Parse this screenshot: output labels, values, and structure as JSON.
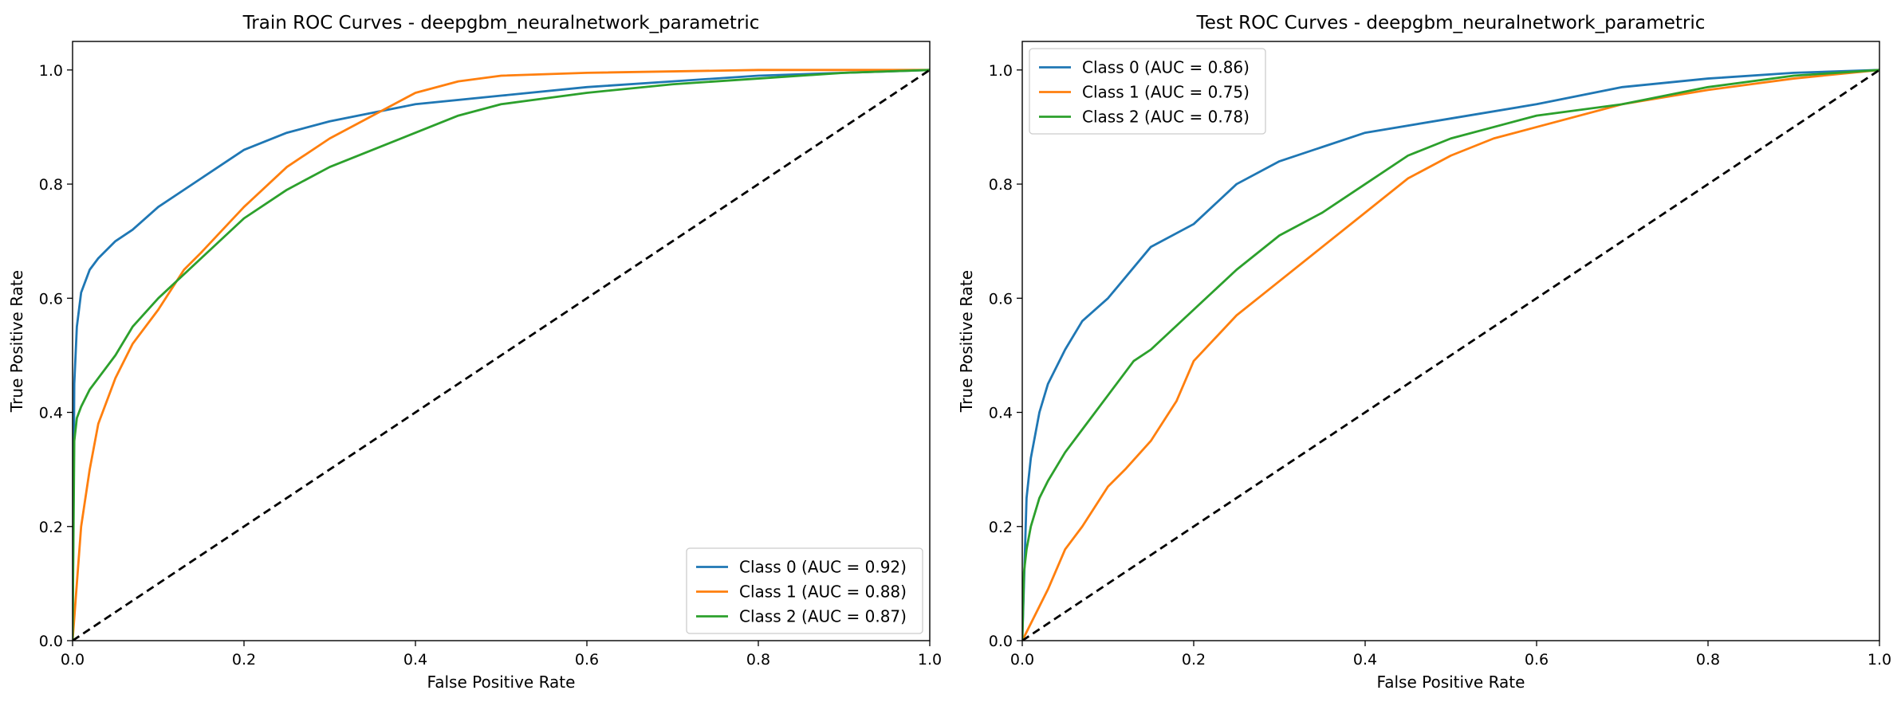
{
  "chart_data": [
    {
      "type": "line",
      "title": "Train ROC Curves - deepgbm_neuralnetwork_parametric",
      "xlabel": "False Positive Rate",
      "ylabel": "True Positive Rate",
      "xlim": [
        0.0,
        1.0
      ],
      "ylim": [
        0.0,
        1.05
      ],
      "xticks": [
        "0.0",
        "0.2",
        "0.4",
        "0.6",
        "0.8",
        "1.0"
      ],
      "yticks": [
        "0.0",
        "0.2",
        "0.4",
        "0.6",
        "0.8",
        "1.0"
      ],
      "grid": false,
      "legend_position": "lower-right",
      "series": [
        {
          "name": "Class 0 (AUC = 0.92)",
          "color": "#1f77b4",
          "x": [
            0.0,
            0.002,
            0.005,
            0.01,
            0.02,
            0.03,
            0.05,
            0.07,
            0.1,
            0.15,
            0.2,
            0.25,
            0.3,
            0.35,
            0.4,
            0.5,
            0.6,
            0.7,
            0.8,
            0.9,
            1.0
          ],
          "y": [
            0.0,
            0.45,
            0.55,
            0.61,
            0.65,
            0.67,
            0.7,
            0.72,
            0.76,
            0.81,
            0.86,
            0.89,
            0.91,
            0.925,
            0.94,
            0.955,
            0.97,
            0.98,
            0.99,
            0.995,
            1.0
          ]
        },
        {
          "name": "Class 1 (AUC = 0.88)",
          "color": "#ff7f0e",
          "x": [
            0.0,
            0.005,
            0.01,
            0.02,
            0.03,
            0.05,
            0.07,
            0.1,
            0.13,
            0.15,
            0.2,
            0.25,
            0.3,
            0.35,
            0.4,
            0.45,
            0.5,
            0.6,
            0.8,
            1.0
          ],
          "y": [
            0.0,
            0.1,
            0.2,
            0.3,
            0.38,
            0.46,
            0.52,
            0.58,
            0.65,
            0.68,
            0.76,
            0.83,
            0.88,
            0.92,
            0.96,
            0.98,
            0.99,
            0.995,
            1.0,
            1.0
          ]
        },
        {
          "name": "Class 2 (AUC = 0.87)",
          "color": "#2ca02c",
          "x": [
            0.0,
            0.002,
            0.005,
            0.01,
            0.02,
            0.03,
            0.05,
            0.07,
            0.1,
            0.15,
            0.2,
            0.25,
            0.3,
            0.35,
            0.4,
            0.45,
            0.5,
            0.6,
            0.7,
            0.8,
            0.9,
            1.0
          ],
          "y": [
            0.0,
            0.35,
            0.39,
            0.41,
            0.44,
            0.46,
            0.5,
            0.55,
            0.6,
            0.67,
            0.74,
            0.79,
            0.83,
            0.86,
            0.89,
            0.92,
            0.94,
            0.96,
            0.975,
            0.985,
            0.995,
            1.0
          ]
        },
        {
          "name": "",
          "color": "#000000",
          "dashed": true,
          "x": [
            0.0,
            1.0
          ],
          "y": [
            0.0,
            1.0
          ]
        }
      ]
    },
    {
      "type": "line",
      "title": "Test ROC Curves - deepgbm_neuralnetwork_parametric",
      "xlabel": "False Positive Rate",
      "ylabel": "True Positive Rate",
      "xlim": [
        0.0,
        1.0
      ],
      "ylim": [
        0.0,
        1.05
      ],
      "xticks": [
        "0.0",
        "0.2",
        "0.4",
        "0.6",
        "0.8",
        "1.0"
      ],
      "yticks": [
        "0.0",
        "0.2",
        "0.4",
        "0.6",
        "0.8",
        "1.0"
      ],
      "grid": false,
      "legend_position": "upper-left",
      "series": [
        {
          "name": "Class 0 (AUC = 0.86)",
          "color": "#1f77b4",
          "x": [
            0.0,
            0.005,
            0.01,
            0.02,
            0.03,
            0.05,
            0.07,
            0.1,
            0.15,
            0.2,
            0.25,
            0.3,
            0.35,
            0.4,
            0.5,
            0.6,
            0.7,
            0.8,
            0.9,
            1.0
          ],
          "y": [
            0.0,
            0.25,
            0.32,
            0.4,
            0.45,
            0.51,
            0.56,
            0.6,
            0.69,
            0.73,
            0.8,
            0.84,
            0.865,
            0.89,
            0.915,
            0.94,
            0.97,
            0.985,
            0.995,
            1.0
          ]
        },
        {
          "name": "Class 1 (AUC = 0.75)",
          "color": "#ff7f0e",
          "x": [
            0.0,
            0.01,
            0.02,
            0.03,
            0.05,
            0.07,
            0.1,
            0.12,
            0.15,
            0.18,
            0.2,
            0.25,
            0.3,
            0.35,
            0.4,
            0.45,
            0.5,
            0.55,
            0.6,
            0.7,
            0.8,
            0.9,
            1.0
          ],
          "y": [
            0.0,
            0.03,
            0.06,
            0.09,
            0.16,
            0.2,
            0.27,
            0.3,
            0.35,
            0.42,
            0.49,
            0.57,
            0.63,
            0.69,
            0.75,
            0.81,
            0.85,
            0.88,
            0.9,
            0.94,
            0.965,
            0.985,
            1.0
          ]
        },
        {
          "name": "Class 2 (AUC = 0.78)",
          "color": "#2ca02c",
          "x": [
            0.0,
            0.002,
            0.005,
            0.01,
            0.02,
            0.03,
            0.05,
            0.07,
            0.1,
            0.13,
            0.15,
            0.2,
            0.25,
            0.3,
            0.35,
            0.4,
            0.45,
            0.5,
            0.55,
            0.6,
            0.7,
            0.8,
            0.9,
            1.0
          ],
          "y": [
            0.0,
            0.12,
            0.16,
            0.2,
            0.25,
            0.28,
            0.33,
            0.37,
            0.43,
            0.49,
            0.51,
            0.58,
            0.65,
            0.71,
            0.75,
            0.8,
            0.85,
            0.88,
            0.9,
            0.92,
            0.94,
            0.97,
            0.99,
            1.0
          ]
        },
        {
          "name": "",
          "color": "#000000",
          "dashed": true,
          "x": [
            0.0,
            1.0
          ],
          "y": [
            0.0,
            1.0
          ]
        }
      ]
    }
  ]
}
